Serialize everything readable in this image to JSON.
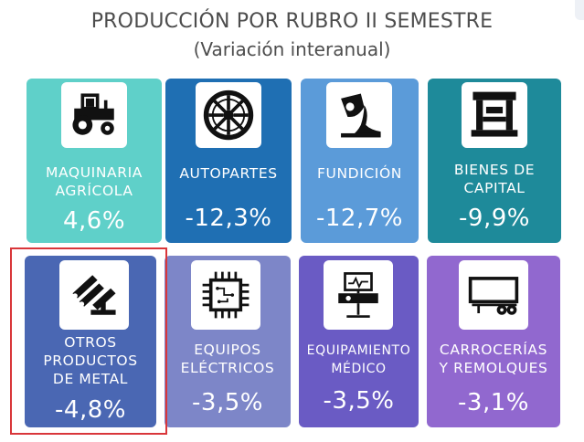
{
  "header": {
    "title": "PRODUCCIÓN POR RUBRO II SEMESTRE",
    "subtitle": "(Variación interanual)"
  },
  "cards": [
    {
      "label_lines": [
        "MAQUINARIA",
        "AGRÍCOLA"
      ],
      "value": "4,6%",
      "icon": "tractor-icon",
      "color": "#5fd0c9"
    },
    {
      "label_lines": [
        "AUTOPARTES"
      ],
      "value": "-12,3%",
      "icon": "wheel-rim-icon",
      "color": "#1f6fb3"
    },
    {
      "label_lines": [
        "FUNDICIÓN"
      ],
      "value": "-12,7%",
      "icon": "ladle-pour-icon",
      "color": "#5b9bd9"
    },
    {
      "label_lines": [
        "BIENES DE",
        "CAPITAL"
      ],
      "value": "-9,9%",
      "icon": "industrial-machine-icon",
      "color": "#1e8a9a"
    },
    {
      "label_lines": [
        "OTROS",
        "PRODUCTOS",
        "DE METAL"
      ],
      "value": "-4,8%",
      "icon": "metal-pipes-icon",
      "color": "#4a67b3"
    },
    {
      "label_lines": [
        "EQUIPOS",
        "ELÉCTRICOS"
      ],
      "value": "-3,5%",
      "icon": "microchip-icon",
      "color": "#7d86c8"
    },
    {
      "label_lines": [
        "EQUIPAMIENTO",
        "MÉDICO"
      ],
      "value": "-3,5%",
      "icon": "medical-monitor-icon",
      "color": "#6a5bc4"
    },
    {
      "label_lines": [
        "CARROCERÍAS",
        "Y REMOLQUES"
      ],
      "value": "-3,1%",
      "icon": "trailer-icon",
      "color": "#9168cf"
    }
  ]
}
